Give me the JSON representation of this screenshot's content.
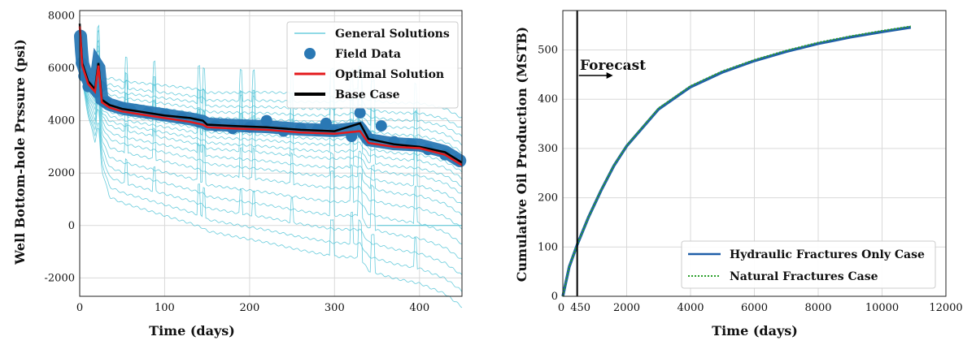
{
  "chart_data": [
    {
      "type": "line",
      "xlabel": "Time (days)",
      "ylabel": "Well Bottom-hole Prssure (psi)",
      "xlim": [
        0,
        450
      ],
      "ylim": [
        -2700,
        8200
      ],
      "xticks": [
        "0",
        "100",
        "200",
        "300",
        "400"
      ],
      "yticks": [
        "-2000",
        "0",
        "2000",
        "4000",
        "6000",
        "8000"
      ],
      "grid": true,
      "legend_position": "top-right",
      "legend": [
        "General Solutions",
        "Field Data",
        "Optimal Solution",
        "Base Case"
      ],
      "colors": {
        "general": "#4fc3d6",
        "field": "#2a78b4",
        "optimal": "#e31a1c",
        "base": "#000000"
      },
      "series": [
        {
          "name": "Optimal Solution",
          "x": [
            0,
            3,
            10,
            18,
            22,
            26,
            35,
            50,
            70,
            100,
            130,
            145,
            150,
            180,
            220,
            260,
            300,
            330,
            340,
            370,
            400,
            430,
            450
          ],
          "y": [
            7600,
            6100,
            5400,
            5100,
            6100,
            4700,
            4500,
            4350,
            4250,
            4100,
            3950,
            3850,
            3750,
            3700,
            3650,
            3550,
            3500,
            3600,
            3150,
            3000,
            2950,
            2700,
            2300
          ]
        },
        {
          "name": "Base Case",
          "x": [
            0,
            3,
            10,
            18,
            22,
            26,
            35,
            50,
            70,
            100,
            130,
            145,
            150,
            180,
            220,
            260,
            300,
            330,
            340,
            370,
            400,
            430,
            450
          ],
          "y": [
            7700,
            6200,
            5500,
            5200,
            6200,
            4800,
            4600,
            4450,
            4350,
            4200,
            4100,
            4000,
            3850,
            3800,
            3750,
            3650,
            3600,
            3900,
            3300,
            3100,
            3000,
            2800,
            2400
          ]
        },
        {
          "name": "Field Data",
          "x": [
            2,
            5,
            10,
            20,
            25,
            30,
            50,
            60,
            80,
            100,
            120,
            140,
            160,
            180,
            200,
            220,
            240,
            260,
            280,
            290,
            300,
            320,
            330,
            340,
            355,
            370,
            390,
            410,
            430,
            445
          ],
          "y": [
            6200,
            5700,
            5300,
            5100,
            5300,
            4700,
            4500,
            4400,
            4300,
            4200,
            4100,
            3950,
            3800,
            3700,
            3750,
            4000,
            3600,
            3700,
            3650,
            3900,
            3600,
            3400,
            4300,
            3300,
            3800,
            3200,
            3100,
            2900,
            2700,
            2500
          ]
        }
      ],
      "general_offsets": [
        1800,
        1400,
        1100,
        800,
        500,
        250,
        0,
        -250,
        -500,
        -800,
        -1100,
        -1500,
        -1900,
        -2400,
        -3000,
        -3600,
        -4200,
        -4800,
        -5400
      ]
    },
    {
      "type": "line",
      "xlabel": "Time (days)",
      "ylabel": "Cumulative Oil Production (MSTB)",
      "xlim": [
        0,
        12000
      ],
      "ylim": [
        0,
        580
      ],
      "xticks": [
        "0",
        "450",
        "2000",
        "4000",
        "6000",
        "8000",
        "10000",
        "12000"
      ],
      "yticks": [
        "0",
        "100",
        "200",
        "300",
        "400",
        "500"
      ],
      "grid": true,
      "legend_position": "lower-right",
      "legend": [
        "Hydraulic Fractures Only Case",
        "Natural Fractures Case"
      ],
      "annotation": {
        "text": "Forecast",
        "x": 450
      },
      "colors": {
        "hydraulic": "#1f5fa8",
        "natural": "#2ca02c"
      },
      "series": [
        {
          "name": "Hydraulic Fractures Only Case",
          "x": [
            0,
            200,
            450,
            800,
            1200,
            1600,
            2000,
            3000,
            4000,
            5000,
            6000,
            7000,
            8000,
            9000,
            10000,
            10900
          ],
          "y": [
            0,
            60,
            105,
            160,
            215,
            265,
            305,
            380,
            425,
            455,
            478,
            497,
            513,
            526,
            537,
            546
          ]
        },
        {
          "name": "Natural Fractures Case",
          "x": [
            0,
            200,
            450,
            800,
            1200,
            1600,
            2000,
            3000,
            4000,
            5000,
            6000,
            7000,
            8000,
            9000,
            10000,
            10900
          ],
          "y": [
            0,
            60,
            105,
            160,
            216,
            266,
            306,
            382,
            427,
            457,
            480,
            499,
            515,
            528,
            539,
            548
          ]
        }
      ]
    }
  ]
}
